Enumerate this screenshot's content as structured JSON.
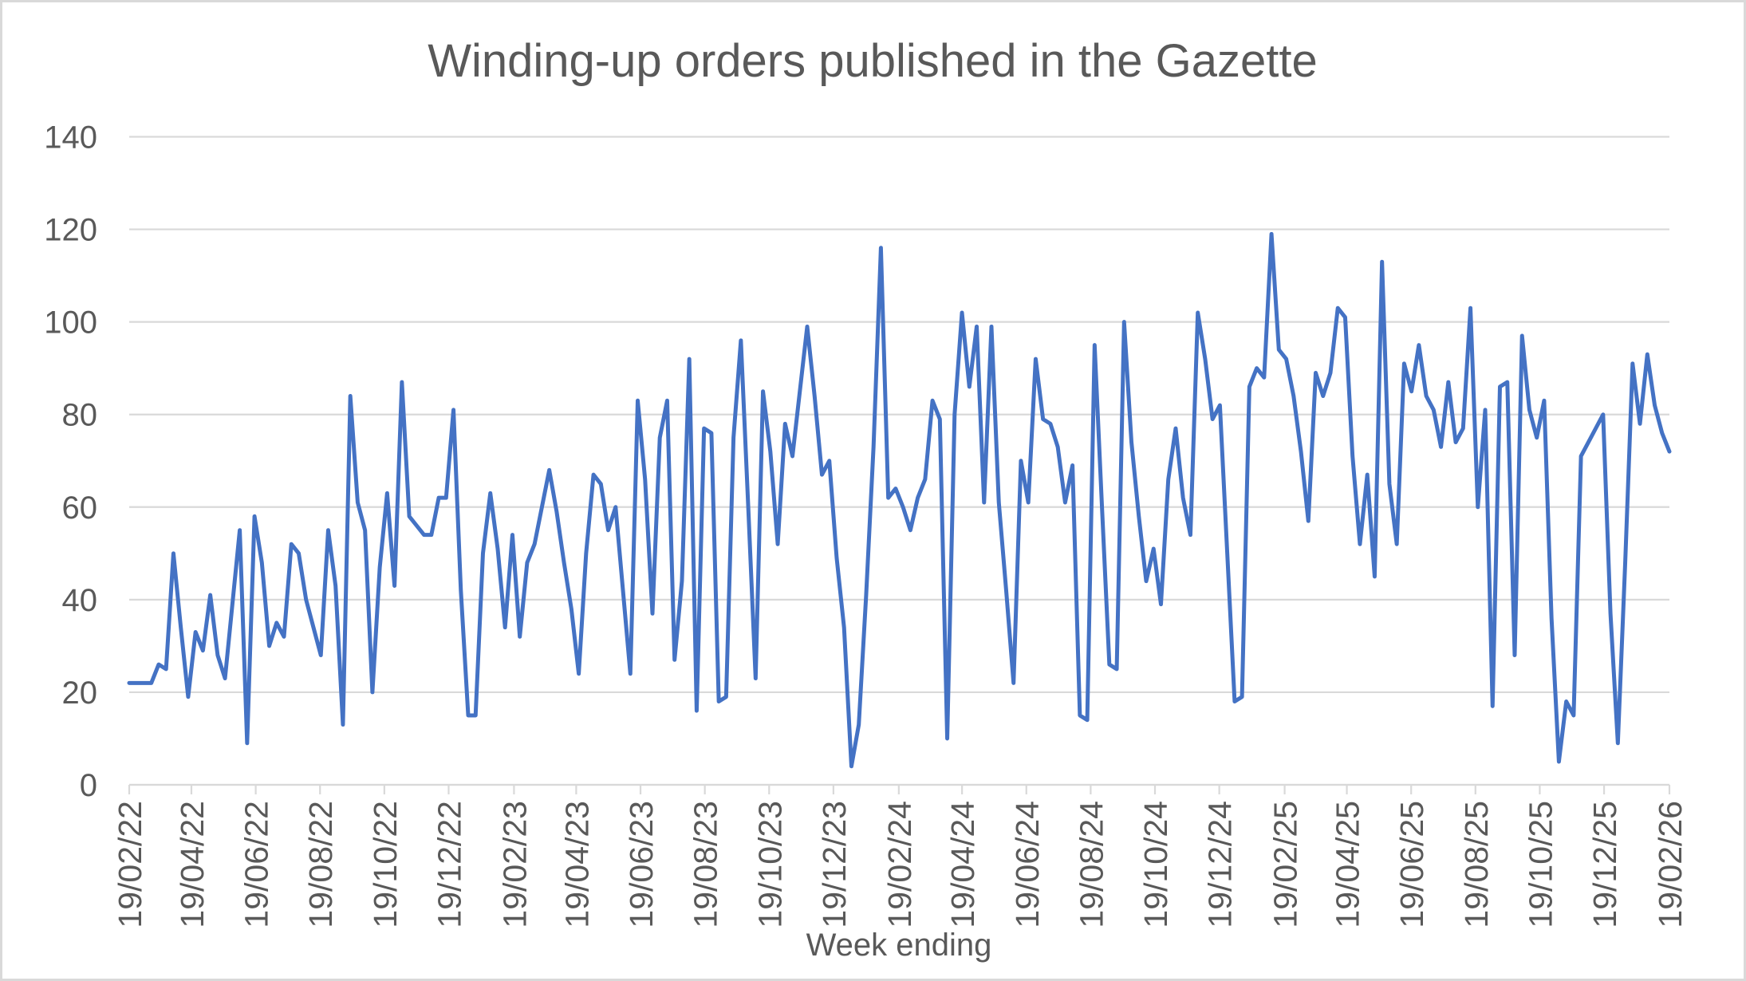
{
  "chart_data": {
    "type": "line",
    "title": "Winding-up orders published in the Gazette",
    "xlabel": "Week ending",
    "ylabel": "",
    "ylim": [
      0,
      140
    ],
    "ytick_interval": 20,
    "ytick_labels": [
      "0",
      "20",
      "40",
      "60",
      "80",
      "100",
      "120",
      "140"
    ],
    "xtick_labels": [
      "19/02/22",
      "19/04/22",
      "19/06/22",
      "19/08/22",
      "19/10/22",
      "19/12/22",
      "19/02/23",
      "19/04/23",
      "19/06/23",
      "19/08/23",
      "19/10/23",
      "19/12/23",
      "19/02/24",
      "19/04/24",
      "19/06/24",
      "19/08/24",
      "19/10/24",
      "19/12/24",
      "19/02/25",
      "19/04/25",
      "19/06/25",
      "19/08/25",
      "19/10/25",
      "19/12/25",
      "19/02/26"
    ],
    "grid": true,
    "legend": false,
    "series": [
      {
        "color": "#4472C4",
        "values": [
          22,
          22,
          22,
          22,
          26,
          25,
          50,
          34,
          19,
          33,
          29,
          41,
          28,
          23,
          39,
          55,
          9,
          58,
          48,
          30,
          35,
          32,
          52,
          50,
          40,
          34,
          28,
          55,
          43,
          13,
          84,
          61,
          55,
          20,
          47,
          63,
          43,
          87,
          58,
          56,
          54,
          54,
          62,
          62,
          81,
          42,
          15,
          15,
          50,
          63,
          51,
          34,
          54,
          32,
          48,
          52,
          60,
          68,
          59,
          48,
          38,
          24,
          50,
          67,
          65,
          55,
          60,
          42,
          24,
          83,
          66,
          37,
          75,
          83,
          27,
          44,
          92,
          16,
          77,
          76,
          18,
          19,
          75,
          96,
          60,
          23,
          85,
          72,
          52,
          78,
          71,
          85,
          99,
          84,
          67,
          70,
          49,
          34,
          4,
          13,
          41,
          73,
          116,
          62,
          64,
          60,
          55,
          62,
          66,
          83,
          79,
          10,
          80,
          102,
          86,
          99,
          61,
          99,
          61,
          42,
          22,
          70,
          61,
          92,
          79,
          78,
          73,
          61,
          69,
          15,
          14,
          95,
          60,
          26,
          25,
          100,
          74,
          58,
          44,
          51,
          39,
          66,
          77,
          62,
          54,
          102,
          92,
          79,
          82,
          50,
          18,
          19,
          86,
          90,
          88,
          119,
          94,
          92,
          84,
          72,
          57,
          89,
          84,
          89,
          103,
          101,
          71,
          52,
          67,
          45,
          113,
          65,
          52,
          91,
          85,
          95,
          84,
          81,
          73,
          87,
          74,
          77,
          103,
          60,
          81,
          17,
          86,
          87,
          28,
          97,
          81,
          75,
          83,
          36,
          5,
          18,
          15,
          71,
          74,
          77,
          80,
          37,
          9,
          48,
          91,
          78,
          93,
          82,
          76,
          72
        ]
      }
    ],
    "colors": {
      "line": "#4472C4",
      "grid": "#D9D9D9",
      "axis": "#D9D9D9",
      "text": "#595959",
      "border": "#D9D9D9",
      "background": "#FFFFFF"
    }
  }
}
